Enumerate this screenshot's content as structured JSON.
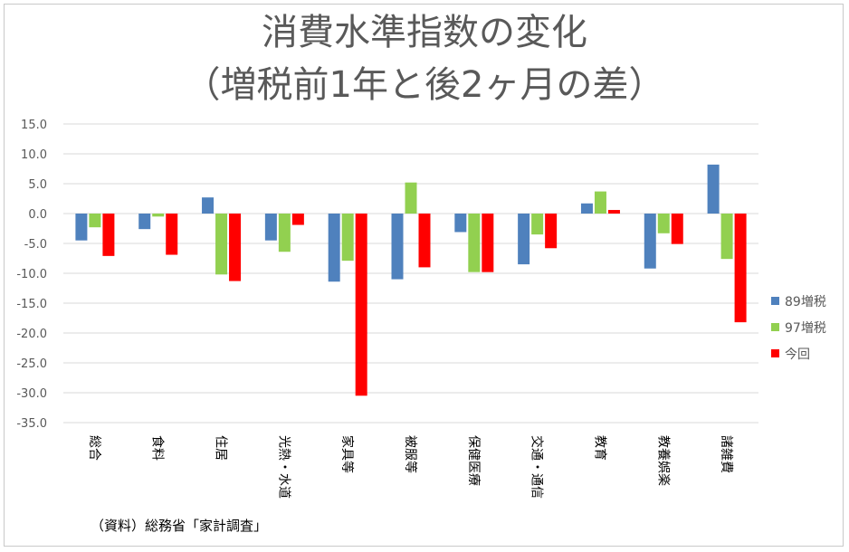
{
  "title_line1": "消費水準指数の変化",
  "title_line2": "（増税前1年と後2ヶ月の差）",
  "source": "（資料）総務省「家計調査」",
  "chart_data": {
    "type": "bar",
    "title": "消費水準指数の変化（増税前1年と後2ヶ月の差）",
    "categories": [
      "総合",
      "食料",
      "住居",
      "光熱・水道",
      "家具等",
      "被服等",
      "保健医療",
      "交通・通信",
      "教育",
      "教養娯楽",
      "諸雑費"
    ],
    "series": [
      {
        "name": "89増税",
        "color": "#4f81bd",
        "values": [
          -4.5,
          -2.6,
          2.7,
          -4.5,
          -11.4,
          -11.0,
          -3.1,
          -8.5,
          1.7,
          -9.2,
          8.2
        ]
      },
      {
        "name": "97増税",
        "color": "#92d050",
        "values": [
          -2.3,
          -0.5,
          -10.2,
          -6.4,
          -7.9,
          5.2,
          -9.8,
          -3.5,
          3.7,
          -3.3,
          -7.6
        ]
      },
      {
        "name": "今回",
        "color": "#ff0000",
        "values": [
          -7.1,
          -6.9,
          -11.3,
          -1.9,
          -30.5,
          -9.0,
          -9.8,
          -5.8,
          0.6,
          -5.1,
          -18.2
        ]
      }
    ],
    "yticks": [
      "15.0",
      "10.0",
      "5.0",
      "0.0",
      "-5.0",
      "-10.0",
      "-15.0",
      "-20.0",
      "-25.0",
      "-30.0",
      "-35.0"
    ],
    "ylim": [
      -35,
      15
    ],
    "grid": true,
    "legend": "right"
  }
}
